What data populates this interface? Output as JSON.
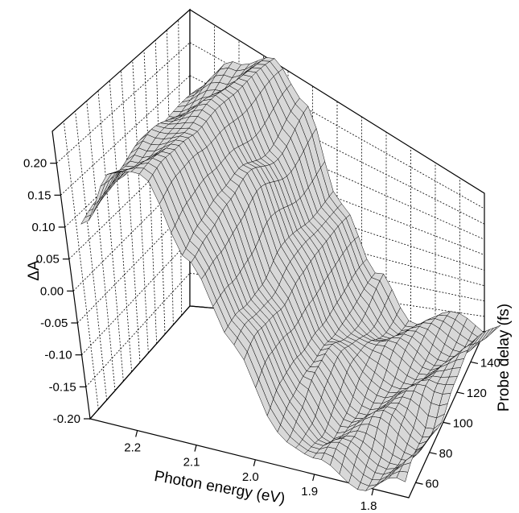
{
  "chart_data": {
    "type": "surface3d",
    "title": "",
    "zlabel": "ΔA",
    "xlabel": "Photon energy (eV)",
    "ylabel": "Probe delay (fs)",
    "zticks": [
      "0.20",
      "0.15",
      "0.10",
      "0.05",
      "0.00",
      "-0.05",
      "-0.10",
      "-0.15",
      "-0.20"
    ],
    "xticks": [
      "2.2",
      "2.1",
      "2.0",
      "1.9",
      "1.8"
    ],
    "yticks": [
      "60",
      "80",
      "100",
      "120",
      "140"
    ],
    "xlim": [
      1.74,
      2.28
    ],
    "ylim": [
      50,
      160
    ],
    "zlim": [
      -0.2,
      0.25
    ],
    "grid": true,
    "mesh_color": "#000000",
    "surface": {
      "energies": [
        2.26,
        2.2,
        2.14,
        2.08,
        2.02,
        1.96,
        1.9,
        1.84,
        1.78,
        1.74
      ],
      "delays": [
        50,
        70,
        90,
        110,
        130,
        160
      ],
      "delta_a": [
        [
          0.1,
          0.2,
          0.2,
          0.09,
          -0.04,
          -0.15,
          -0.2,
          -0.2,
          -0.2,
          -0.2
        ],
        [
          0.11,
          0.19,
          0.21,
          0.11,
          -0.02,
          -0.13,
          -0.18,
          -0.19,
          -0.18,
          -0.17
        ],
        [
          0.12,
          0.2,
          0.22,
          0.12,
          -0.01,
          -0.12,
          -0.16,
          -0.16,
          -0.17,
          -0.14
        ],
        [
          0.13,
          0.19,
          0.23,
          0.14,
          0.01,
          -0.1,
          -0.15,
          -0.14,
          -0.14,
          -0.11
        ],
        [
          0.14,
          0.18,
          0.22,
          0.13,
          0.01,
          -0.09,
          -0.13,
          -0.13,
          -0.12,
          -0.1
        ],
        [
          0.15,
          0.2,
          0.23,
          0.16,
          0.03,
          -0.08,
          -0.12,
          -0.12,
          -0.11,
          -0.09
        ]
      ]
    }
  }
}
